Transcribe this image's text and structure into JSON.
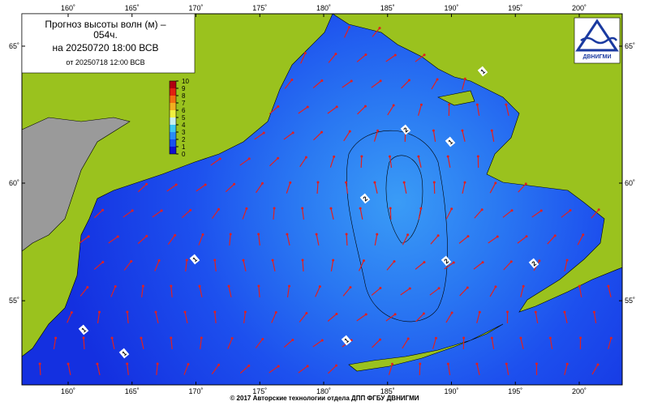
{
  "header": {
    "title_line1": "Прогноз высоты волн (м) –",
    "title_line2": "054ч.",
    "valid": "на 20250720 18:00 ВСВ",
    "issued": "от 20250718 12:00 ВСВ"
  },
  "map": {
    "lon_ticks": [
      {
        "value": 160,
        "label": "160˚"
      },
      {
        "value": 165,
        "label": "165˚"
      },
      {
        "value": 170,
        "label": "170˚"
      },
      {
        "value": 175,
        "label": "175˚"
      },
      {
        "value": 180,
        "label": "180˚"
      },
      {
        "value": 185,
        "label": "185˚"
      },
      {
        "value": 190,
        "label": "190˚"
      },
      {
        "value": 195,
        "label": "195˚"
      },
      {
        "value": 200,
        "label": "200˚"
      }
    ],
    "lat_ticks": [
      {
        "value": 65,
        "label": "65˚"
      },
      {
        "value": 60,
        "label": "60˚"
      },
      {
        "value": 55,
        "label": "55˚"
      }
    ]
  },
  "colorbar": {
    "ticks": [
      0,
      1,
      2,
      3,
      4,
      5,
      6,
      7,
      8,
      9,
      10
    ],
    "colors": [
      "#1010d0",
      "#1850f0",
      "#2a8cf5",
      "#3fc8f0",
      "#c8f0f0",
      "#f0f040",
      "#f0b020",
      "#f07010",
      "#e02010",
      "#b00010",
      "#800000"
    ]
  },
  "contour_labels": [
    "1",
    "2",
    "2",
    "2",
    "1",
    "2",
    "1",
    "1",
    "1",
    "1"
  ],
  "logo": "ДВНИГМИ",
  "footer": "© 2017 Авторские технологии отдела ДПП ФГБУ ДВНИГМИ"
}
